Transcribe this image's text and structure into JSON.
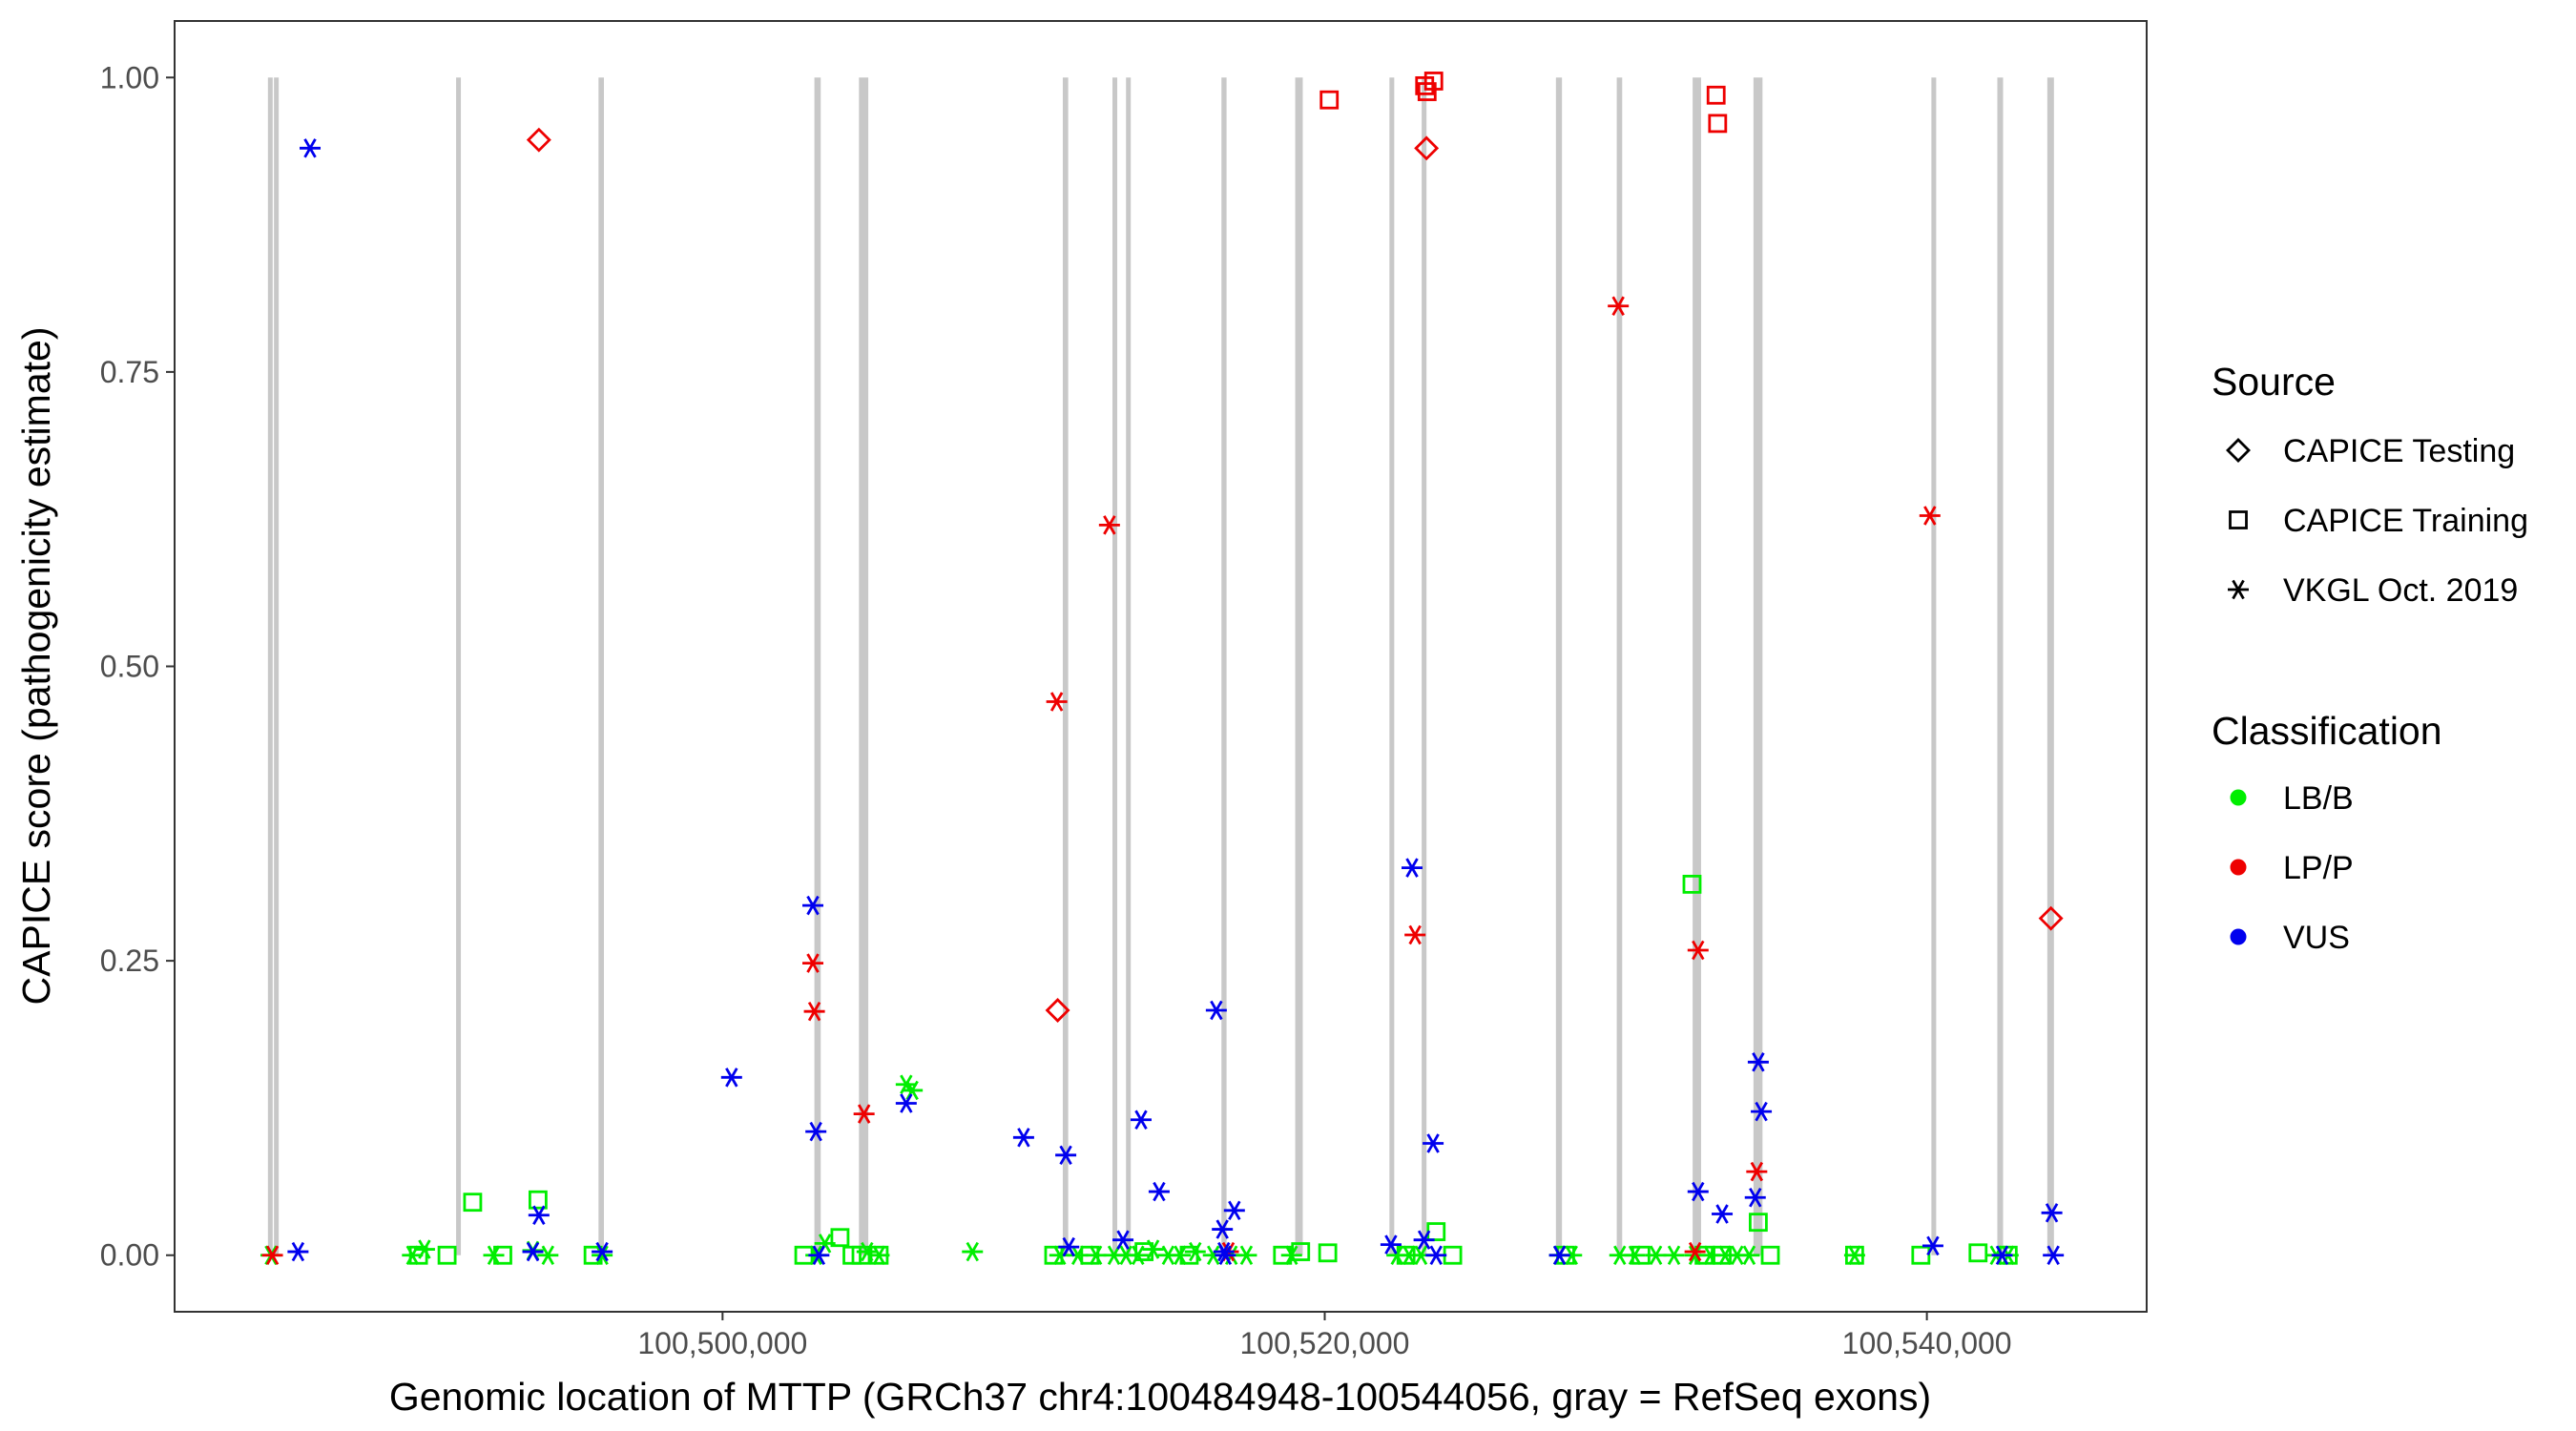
{
  "colors": {
    "LB/B": "#00ee00",
    "LP/P": "#ee0000",
    "VUS": "#0000ee",
    "exon": "#c8c8c8",
    "axis": "#333333",
    "text": "#4d4d4d"
  },
  "chart_data": {
    "type": "scatter",
    "title": "",
    "xlabel": "Genomic location of MTTP (GRCh37 chr4:100484948-100544056, gray = RefSeq exons)",
    "ylabel": "CAPICE score (pathogenicity estimate)",
    "xlim": [
      100481800,
      100547300
    ],
    "ylim": [
      -0.048,
      1.048
    ],
    "x_ticks": [
      {
        "value": 100500000,
        "label": "100,500,000"
      },
      {
        "value": 100520000,
        "label": "100,520,000"
      },
      {
        "value": 100540000,
        "label": "100,540,000"
      }
    ],
    "y_ticks": [
      {
        "value": 0.0,
        "label": "0.00"
      },
      {
        "value": 0.25,
        "label": "0.25"
      },
      {
        "value": 0.5,
        "label": "0.50"
      },
      {
        "value": 0.75,
        "label": "0.75"
      },
      {
        "value": 1.0,
        "label": "1.00"
      }
    ],
    "grid": false,
    "exons": [
      [
        100484900,
        100485000
      ],
      [
        100485100,
        100485230
      ],
      [
        100491150,
        100491260
      ],
      [
        100495880,
        100496060
      ],
      [
        100503050,
        100503260
      ],
      [
        100504530,
        100504840
      ],
      [
        100511300,
        100511480
      ],
      [
        100512950,
        100513090
      ],
      [
        100513400,
        100513550
      ],
      [
        100516570,
        100516740
      ],
      [
        100519020,
        100519270
      ],
      [
        100522150,
        100522300
      ],
      [
        100523220,
        100523380
      ],
      [
        100527680,
        100527880
      ],
      [
        100529700,
        100529880
      ],
      [
        100532220,
        100532500
      ],
      [
        100534240,
        100534540
      ],
      [
        100540150,
        100540300
      ],
      [
        100542340,
        100542530
      ],
      [
        100544000,
        100544220
      ]
    ],
    "legend": {
      "position": "right",
      "source_title": "Source",
      "source_items": [
        {
          "label": "CAPICE Testing",
          "shape": "diamond"
        },
        {
          "label": "CAPICE Training",
          "shape": "square"
        },
        {
          "label": "VKGL Oct. 2019",
          "shape": "asterisk"
        }
      ],
      "class_title": "Classification",
      "class_items": [
        {
          "label": "LB/B",
          "color": "#00ee00"
        },
        {
          "label": "LP/P",
          "color": "#ee0000"
        },
        {
          "label": "VUS",
          "color": "#0000ee"
        }
      ]
    },
    "series": [
      {
        "source": "CAPICE Testing",
        "shape": "diamond",
        "classification": "LP/P",
        "x": [
          100493900,
          100511130,
          100523380,
          100544120
        ],
        "y": [
          0.947,
          0.208,
          0.94,
          0.286
        ]
      },
      {
        "source": "CAPICE Training",
        "shape": "square",
        "classification": "LP/P",
        "x": [
          100520150,
          100523320,
          100523400,
          100523620,
          100533000,
          100533050
        ],
        "y": [
          0.981,
          0.993,
          0.988,
          0.997,
          0.985,
          0.961
        ]
      },
      {
        "source": "CAPICE Training",
        "shape": "square",
        "classification": "LB/B",
        "x": [
          100489900,
          100490850,
          100491700,
          100492700,
          100493870,
          100495700,
          100502700,
          100503900,
          100504300,
          100504600,
          100505200,
          100511000,
          100512200,
          100514000,
          100515500,
          100518600,
          100519200,
          100520100,
          100522700,
          100523700,
          100524250,
          100528000,
          100530500,
          100532200,
          100532600,
          100533200,
          100534400,
          100534800,
          100537600,
          100539800,
          100541700,
          100542700
        ],
        "y": [
          0.0,
          0.0,
          0.045,
          0.0,
          0.047,
          0.0,
          0.0,
          0.015,
          0.0,
          0.0,
          0.0,
          0.0,
          0.0,
          0.003,
          0.0,
          0.0,
          0.003,
          0.002,
          0.0,
          0.02,
          0.0,
          0.0,
          0.0,
          0.315,
          0.0,
          0.0,
          0.028,
          0.0,
          0.0,
          0.0,
          0.002,
          0.0
        ]
      },
      {
        "source": "VKGL Oct. 2019",
        "shape": "asterisk",
        "classification": "LB/B",
        "x": [
          100485000,
          100489700,
          100490100,
          100492400,
          100493700,
          100494200,
          100496000,
          100503100,
          100503400,
          100504800,
          100505200,
          100506100,
          100506300,
          100508300,
          100511200,
          100511800,
          100512400,
          100513000,
          100513400,
          100513800,
          100514300,
          100514800,
          100515200,
          100515700,
          100516300,
          100516900,
          100517400,
          100518900,
          100522400,
          100522800,
          100523200,
          100527800,
          100528200,
          100529800,
          100530300,
          100531000,
          100531600,
          100532300,
          100532800,
          100533300,
          100533700,
          100534100,
          100537600,
          100542300,
          100542700
        ],
        "y": [
          0.0,
          0.0,
          0.005,
          0.0,
          0.004,
          0.0,
          0.0,
          0.0,
          0.01,
          0.003,
          0.0,
          0.145,
          0.14,
          0.003,
          0.0,
          0.0,
          0.0,
          0.0,
          0.0,
          0.0,
          0.005,
          0.0,
          0.0,
          0.003,
          0.0,
          0.0,
          0.0,
          0.0,
          0.0,
          0.0,
          0.0,
          0.0,
          0.0,
          0.0,
          0.0,
          0.0,
          0.0,
          0.0,
          0.0,
          0.0,
          0.0,
          0.0,
          0.0,
          0.0,
          0.0
        ]
      },
      {
        "source": "VKGL Oct. 2019",
        "shape": "asterisk",
        "classification": "LP/P",
        "x": [
          100485050,
          100503000,
          100503050,
          100504700,
          100511100,
          100512850,
          100516800,
          100523000,
          100529750,
          100532300,
          100532400,
          100534350,
          100540100
        ],
        "y": [
          0.0,
          0.248,
          0.207,
          0.12,
          0.47,
          0.62,
          0.003,
          0.272,
          0.806,
          0.003,
          0.259,
          0.071,
          0.628
        ]
      },
      {
        "source": "VKGL Oct. 2019",
        "shape": "asterisk",
        "classification": "VUS",
        "x": [
          100486300,
          100485900,
          100493700,
          100493900,
          100496000,
          100500300,
          100503000,
          100503100,
          100503200,
          100506100,
          100510000,
          100511400,
          100511500,
          100513300,
          100513900,
          100514500,
          100516400,
          100516600,
          100516650,
          100516700,
          100517000,
          100522200,
          100522900,
          100523300,
          100523600,
          100523700,
          100527800,
          100532400,
          100533200,
          100534300,
          100534400,
          100534500,
          100540200,
          100544150,
          100544200,
          100542500
        ],
        "y": [
          0.94,
          0.003,
          0.003,
          0.034,
          0.003,
          0.151,
          0.297,
          0.105,
          0.0,
          0.129,
          0.1,
          0.085,
          0.007,
          0.013,
          0.115,
          0.054,
          0.208,
          0.022,
          0.003,
          0.0,
          0.038,
          0.009,
          0.329,
          0.013,
          0.095,
          0.0,
          0.0,
          0.054,
          0.035,
          0.049,
          0.164,
          0.122,
          0.008,
          0.036,
          0.0,
          0.0
        ]
      }
    ]
  }
}
